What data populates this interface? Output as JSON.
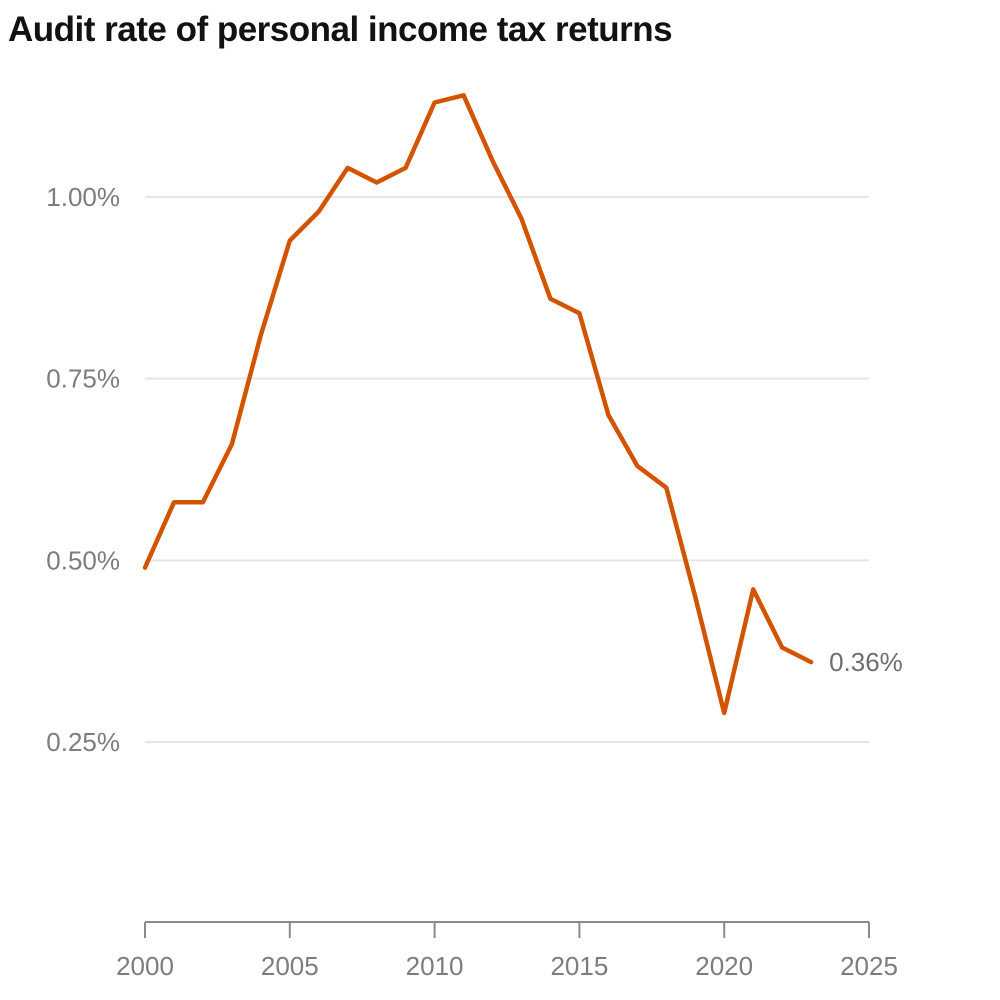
{
  "chart_data": {
    "type": "line",
    "title": "Audit rate of personal income tax returns",
    "xlabel": "",
    "ylabel": "",
    "xlim": [
      2000,
      2025
    ],
    "ylim": [
      0,
      1.1
    ],
    "grid": true,
    "y_ticks": [
      {
        "value": 0.25,
        "label": "0.25%"
      },
      {
        "value": 0.5,
        "label": "0.50%"
      },
      {
        "value": 0.75,
        "label": "0.75%"
      },
      {
        "value": 1.0,
        "label": "1.00%"
      }
    ],
    "x_ticks": [
      {
        "value": 2000,
        "label": "2000"
      },
      {
        "value": 2005,
        "label": "2005"
      },
      {
        "value": 2010,
        "label": "2010"
      },
      {
        "value": 2015,
        "label": "2015"
      },
      {
        "value": 2020,
        "label": "2020"
      },
      {
        "value": 2025,
        "label": "2025"
      }
    ],
    "series": [
      {
        "color": "#d35400",
        "x": [
          2000,
          2001,
          2002,
          2003,
          2004,
          2005,
          2006,
          2007,
          2008,
          2009,
          2010,
          2011,
          2012,
          2013,
          2014,
          2015,
          2016,
          2017,
          2018,
          2019,
          2020,
          2021,
          2022,
          2023
        ],
        "y": [
          0.49,
          0.58,
          0.58,
          0.66,
          0.81,
          0.94,
          0.98,
          1.04,
          1.02,
          1.04,
          1.13,
          1.14,
          1.05,
          0.97,
          0.86,
          0.84,
          0.7,
          0.63,
          0.6,
          0.45,
          0.29,
          0.46,
          0.38,
          0.36
        ]
      }
    ],
    "end_label": "0.36%"
  }
}
